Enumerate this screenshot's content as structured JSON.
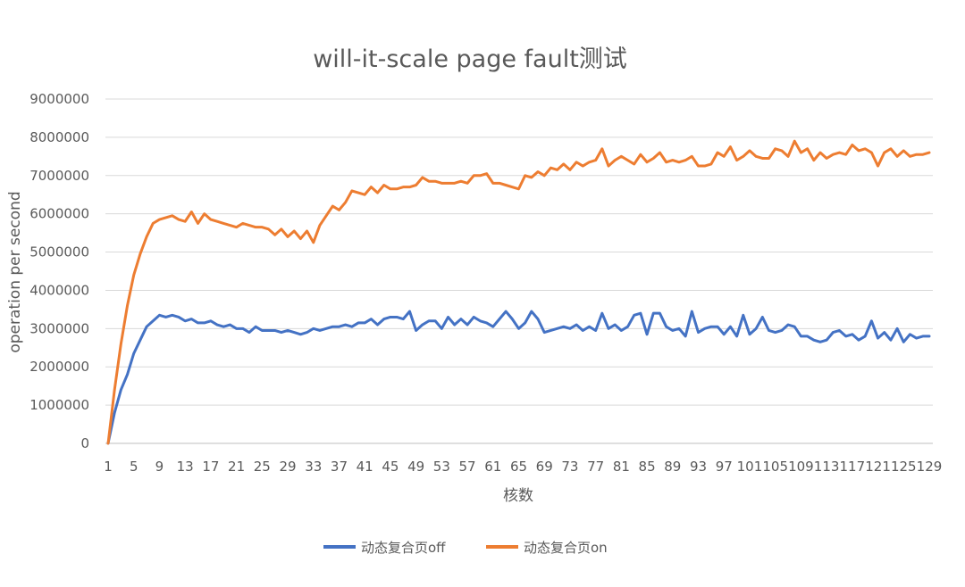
{
  "chart_data": {
    "type": "line",
    "title": "will-it-scale page fault测试",
    "xlabel": "核数",
    "ylabel": "operation per second",
    "ylim": [
      0,
      9000000
    ],
    "yticks": [
      "0",
      "1000000",
      "2000000",
      "3000000",
      "4000000",
      "5000000",
      "6000000",
      "7000000",
      "8000000",
      "9000000"
    ],
    "xlim": [
      1,
      129
    ],
    "xticks": [
      "1",
      "5",
      "9",
      "13",
      "17",
      "21",
      "25",
      "29",
      "33",
      "37",
      "41",
      "45",
      "49",
      "53",
      "57",
      "61",
      "65",
      "69",
      "73",
      "77",
      "81",
      "85",
      "89",
      "93",
      "97",
      "101",
      "105",
      "109",
      "113",
      "117",
      "121",
      "125",
      "129"
    ],
    "grid": true,
    "legend": "bottom",
    "series": [
      {
        "name": "动态复合页off",
        "color": "#4472c4",
        "x": [
          1,
          2,
          3,
          4,
          5,
          6,
          7,
          8,
          9,
          10,
          11,
          12,
          13,
          14,
          15,
          16,
          17,
          18,
          19,
          20,
          21,
          22,
          23,
          24,
          25,
          26,
          27,
          28,
          29,
          30,
          31,
          32,
          33,
          34,
          35,
          36,
          37,
          38,
          39,
          40,
          41,
          42,
          43,
          44,
          45,
          46,
          47,
          48,
          49,
          50,
          51,
          52,
          53,
          54,
          55,
          56,
          57,
          58,
          59,
          60,
          61,
          62,
          63,
          64,
          65,
          66,
          67,
          68,
          69,
          70,
          71,
          72,
          73,
          74,
          75,
          76,
          77,
          78,
          79,
          80,
          81,
          82,
          83,
          84,
          85,
          86,
          87,
          88,
          89,
          90,
          91,
          92,
          93,
          94,
          95,
          96,
          97,
          98,
          99,
          100,
          101,
          102,
          103,
          104,
          105,
          106,
          107,
          108,
          109,
          110,
          111,
          112,
          113,
          114,
          115,
          116,
          117,
          118,
          119,
          120,
          121,
          122,
          123,
          124,
          125,
          126,
          127,
          128,
          129
        ],
        "values": [
          0,
          800000,
          1400000,
          1800000,
          2350000,
          2700000,
          3050000,
          3200000,
          3350000,
          3300000,
          3350000,
          3300000,
          3200000,
          3250000,
          3150000,
          3150000,
          3200000,
          3100000,
          3050000,
          3100000,
          3000000,
          3000000,
          2900000,
          3050000,
          2950000,
          2950000,
          2950000,
          2900000,
          2950000,
          2900000,
          2850000,
          2900000,
          3000000,
          2950000,
          3000000,
          3050000,
          3050000,
          3100000,
          3050000,
          3150000,
          3150000,
          3250000,
          3100000,
          3250000,
          3300000,
          3300000,
          3250000,
          3450000,
          2950000,
          3100000,
          3200000,
          3200000,
          3000000,
          3300000,
          3100000,
          3250000,
          3100000,
          3300000,
          3200000,
          3150000,
          3050000,
          3250000,
          3450000,
          3250000,
          3000000,
          3150000,
          3450000,
          3250000,
          2900000,
          2950000,
          3000000,
          3050000,
          3000000,
          3100000,
          2950000,
          3050000,
          2950000,
          3400000,
          3000000,
          3100000,
          2950000,
          3050000,
          3350000,
          3400000,
          2850000,
          3400000,
          3400000,
          3050000,
          2950000,
          3000000,
          2800000,
          3450000,
          2900000,
          3000000,
          3050000,
          3050000,
          2850000,
          3050000,
          2800000,
          3350000,
          2850000,
          3000000,
          3300000,
          2950000,
          2900000,
          2950000,
          3100000,
          3050000,
          2800000,
          2800000,
          2700000,
          2650000,
          2700000,
          2900000,
          2950000,
          2800000,
          2850000,
          2700000,
          2800000,
          3200000,
          2750000,
          2900000,
          2700000,
          3000000,
          2650000,
          2850000,
          2750000,
          2800000,
          2800000
        ]
      },
      {
        "name": "动态复合页on",
        "color": "#ed7d31",
        "x": [
          1,
          2,
          3,
          4,
          5,
          6,
          7,
          8,
          9,
          10,
          11,
          12,
          13,
          14,
          15,
          16,
          17,
          18,
          19,
          20,
          21,
          22,
          23,
          24,
          25,
          26,
          27,
          28,
          29,
          30,
          31,
          32,
          33,
          34,
          35,
          36,
          37,
          38,
          39,
          40,
          41,
          42,
          43,
          44,
          45,
          46,
          47,
          48,
          49,
          50,
          51,
          52,
          53,
          54,
          55,
          56,
          57,
          58,
          59,
          60,
          61,
          62,
          63,
          64,
          65,
          66,
          67,
          68,
          69,
          70,
          71,
          72,
          73,
          74,
          75,
          76,
          77,
          78,
          79,
          80,
          81,
          82,
          83,
          84,
          85,
          86,
          87,
          88,
          89,
          90,
          91,
          92,
          93,
          94,
          95,
          96,
          97,
          98,
          99,
          100,
          101,
          102,
          103,
          104,
          105,
          106,
          107,
          108,
          109,
          110,
          111,
          112,
          113,
          114,
          115,
          116,
          117,
          118,
          119,
          120,
          121,
          122,
          123,
          124,
          125,
          126,
          127,
          128,
          129
        ],
        "values": [
          0,
          1400000,
          2600000,
          3600000,
          4400000,
          4950000,
          5400000,
          5750000,
          5850000,
          5900000,
          5950000,
          5850000,
          5800000,
          6050000,
          5750000,
          6000000,
          5850000,
          5800000,
          5750000,
          5700000,
          5650000,
          5750000,
          5700000,
          5650000,
          5650000,
          5600000,
          5450000,
          5600000,
          5400000,
          5550000,
          5350000,
          5550000,
          5250000,
          5700000,
          5950000,
          6200000,
          6100000,
          6300000,
          6600000,
          6550000,
          6500000,
          6700000,
          6550000,
          6750000,
          6650000,
          6650000,
          6700000,
          6700000,
          6750000,
          6950000,
          6850000,
          6850000,
          6800000,
          6800000,
          6800000,
          6850000,
          6800000,
          7000000,
          7000000,
          7050000,
          6800000,
          6800000,
          6750000,
          6700000,
          6650000,
          7000000,
          6950000,
          7100000,
          7000000,
          7200000,
          7150000,
          7300000,
          7150000,
          7350000,
          7250000,
          7350000,
          7400000,
          7700000,
          7250000,
          7400000,
          7500000,
          7400000,
          7300000,
          7550000,
          7350000,
          7450000,
          7600000,
          7350000,
          7400000,
          7350000,
          7400000,
          7500000,
          7250000,
          7250000,
          7300000,
          7600000,
          7500000,
          7750000,
          7400000,
          7500000,
          7650000,
          7500000,
          7450000,
          7450000,
          7700000,
          7650000,
          7500000,
          7900000,
          7600000,
          7700000,
          7400000,
          7600000,
          7450000,
          7550000,
          7600000,
          7550000,
          7800000,
          7650000,
          7700000,
          7600000,
          7250000,
          7600000,
          7700000,
          7500000,
          7650000,
          7500000,
          7550000,
          7550000,
          7600000
        ]
      }
    ]
  }
}
